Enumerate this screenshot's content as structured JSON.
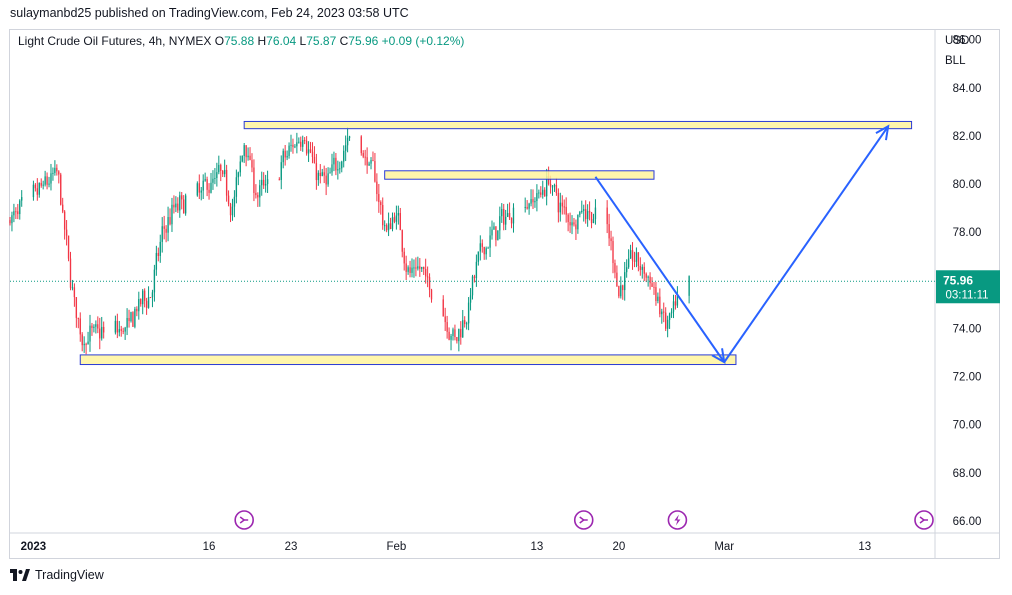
{
  "header": {
    "publisher_line": "sulaymanbd25 published on TradingView.com, Feb 24, 2023 03:58 UTC"
  },
  "legend": {
    "symbol": "Light Crude Oil Futures, 4h, NYMEX",
    "open_label": "O",
    "open": "75.88",
    "high_label": "H",
    "high": "76.04",
    "low_label": "L",
    "low": "75.87",
    "close_label": "C",
    "close": "75.96",
    "change": "+0.09 (+0.12%)"
  },
  "price_scale": {
    "currency": "USD",
    "unit": "BLL"
  },
  "last_price": {
    "value": "75.96",
    "countdown": "03:11:11"
  },
  "footer": {
    "brand": "TradingView"
  },
  "colors": {
    "up": "#089981",
    "down": "#f23645",
    "zone_fill": "#fff59d",
    "zone_stroke": "#2a3bd6",
    "arrow": "#2962ff",
    "event": "#9c27b0"
  },
  "chart_data": {
    "type": "candlestick",
    "ylim": [
      65.5,
      86.4
    ],
    "yticks": [
      66,
      68,
      70,
      72,
      74,
      76,
      78,
      80,
      82,
      84,
      86
    ],
    "ytick_labels": [
      "66.00",
      "68.00",
      "70.00",
      "72.00",
      "74.00",
      "76.00",
      "78.00",
      "80.00",
      "82.00",
      "84.00",
      "86.00"
    ],
    "xlim": [
      "2022-12-30",
      "2023-03-19"
    ],
    "xticks": [
      {
        "date": "2023-01-01",
        "label": "2023",
        "bold": true
      },
      {
        "date": "2023-01-16",
        "label": "16"
      },
      {
        "date": "2023-01-23",
        "label": "23"
      },
      {
        "date": "2023-02-01",
        "label": "Feb"
      },
      {
        "date": "2023-02-13",
        "label": "13"
      },
      {
        "date": "2023-02-20",
        "label": "20"
      },
      {
        "date": "2023-03-01",
        "label": "Mar"
      },
      {
        "date": "2023-03-13",
        "label": "13"
      }
    ],
    "path": [
      [
        "2022-12-30",
        78.5
      ],
      [
        "2023-01-03",
        80.5
      ],
      [
        "2023-01-04",
        76.5
      ],
      [
        "2023-01-05",
        73.5
      ],
      [
        "2023-01-06",
        73.8
      ],
      [
        "2023-01-09",
        74.0
      ],
      [
        "2023-01-10",
        75.0
      ],
      [
        "2023-01-11",
        75.5
      ],
      [
        "2023-01-12",
        78.0
      ],
      [
        "2023-01-13",
        79.0
      ],
      [
        "2023-01-16",
        80.0
      ],
      [
        "2023-01-17",
        80.5
      ],
      [
        "2023-01-18",
        79.0
      ],
      [
        "2023-01-19",
        82.0
      ],
      [
        "2023-01-20",
        79.5
      ],
      [
        "2023-01-21",
        80.0
      ],
      [
        "2023-01-23",
        81.5
      ],
      [
        "2023-01-24",
        82.2
      ],
      [
        "2023-01-25",
        80.5
      ],
      [
        "2023-01-26",
        80.0
      ],
      [
        "2023-01-27",
        81.0
      ],
      [
        "2023-01-28",
        82.0
      ],
      [
        "2023-01-30",
        80.5
      ],
      [
        "2023-01-31",
        78.0
      ],
      [
        "2023-02-01",
        78.8
      ],
      [
        "2023-02-02",
        76.2
      ],
      [
        "2023-02-03",
        76.5
      ],
      [
        "2023-02-04",
        75.5
      ],
      [
        "2023-02-06",
        73.5
      ],
      [
        "2023-02-07",
        74.8
      ],
      [
        "2023-02-08",
        77.0
      ],
      [
        "2023-02-10",
        78.5
      ],
      [
        "2023-02-11",
        79.0
      ],
      [
        "2023-02-13",
        79.5
      ],
      [
        "2023-02-14",
        80.2
      ],
      [
        "2023-02-15",
        79.0
      ],
      [
        "2023-02-16",
        78.5
      ],
      [
        "2023-02-17",
        79.0
      ],
      [
        "2023-02-18",
        78.5
      ],
      [
        "2023-02-19",
        78.0
      ],
      [
        "2023-02-20",
        75.5
      ],
      [
        "2023-02-21",
        77.0
      ],
      [
        "2023-02-22",
        76.5
      ],
      [
        "2023-02-23",
        75.5
      ],
      [
        "2023-02-24",
        74.0
      ],
      [
        "2023-02-25",
        75.0
      ],
      [
        "2023-02-26",
        76.0
      ]
    ],
    "zones": [
      {
        "from": "2023-01-19",
        "to": "2023-03-17",
        "low": 82.3,
        "high": 82.6
      },
      {
        "from": "2023-01-31",
        "to": "2023-02-23",
        "low": 80.2,
        "high": 80.55
      },
      {
        "from": "2023-01-05",
        "to": "2023-03-02",
        "low": 72.5,
        "high": 72.9
      }
    ],
    "arrows": [
      {
        "from": [
          "2023-02-18",
          80.3
        ],
        "to": [
          "2023-03-01",
          72.6
        ]
      },
      {
        "from": [
          "2023-03-01",
          72.6
        ],
        "to": [
          "2023-03-15",
          82.4
        ]
      }
    ],
    "event_markers": [
      {
        "date": "2023-01-19",
        "kind": "roll"
      },
      {
        "date": "2023-02-17",
        "kind": "roll"
      },
      {
        "date": "2023-02-25",
        "kind": "flash"
      },
      {
        "date": "2023-03-19",
        "kind": "roll"
      }
    ]
  }
}
